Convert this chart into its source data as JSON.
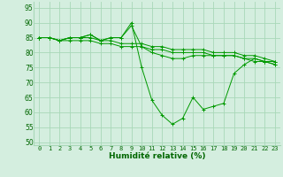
{
  "x_ticks": [
    0,
    1,
    2,
    3,
    4,
    5,
    6,
    7,
    8,
    9,
    10,
    11,
    12,
    13,
    14,
    15,
    16,
    17,
    18,
    19,
    20,
    21,
    22,
    23
  ],
  "ylim": [
    49,
    97
  ],
  "yticks": [
    50,
    55,
    60,
    65,
    70,
    75,
    80,
    85,
    90,
    95
  ],
  "bg_color": "#d4eedf",
  "grid_color": "#a8d8b8",
  "line_color": "#009900",
  "xlabel": "Humidité relative (%)",
  "xlabel_color": "#006600",
  "xlabel_fontsize": 6.5,
  "tick_color": "#006600",
  "tick_fontsize": 5.0,
  "series": [
    [
      85,
      85,
      84,
      85,
      85,
      86,
      84,
      85,
      85,
      90,
      75,
      64,
      59,
      56,
      58,
      65,
      61,
      62,
      63,
      73,
      76,
      78,
      77,
      77
    ],
    [
      85,
      85,
      84,
      85,
      85,
      86,
      84,
      85,
      85,
      89,
      82,
      80,
      79,
      78,
      78,
      79,
      79,
      79,
      79,
      79,
      78,
      78,
      77,
      76
    ],
    [
      85,
      85,
      84,
      85,
      85,
      85,
      84,
      84,
      83,
      83,
      83,
      82,
      82,
      81,
      81,
      81,
      81,
      80,
      80,
      80,
      79,
      79,
      78,
      77
    ],
    [
      85,
      85,
      84,
      84,
      84,
      84,
      83,
      83,
      82,
      82,
      82,
      81,
      81,
      80,
      80,
      80,
      80,
      79,
      79,
      79,
      78,
      77,
      77,
      76
    ]
  ]
}
